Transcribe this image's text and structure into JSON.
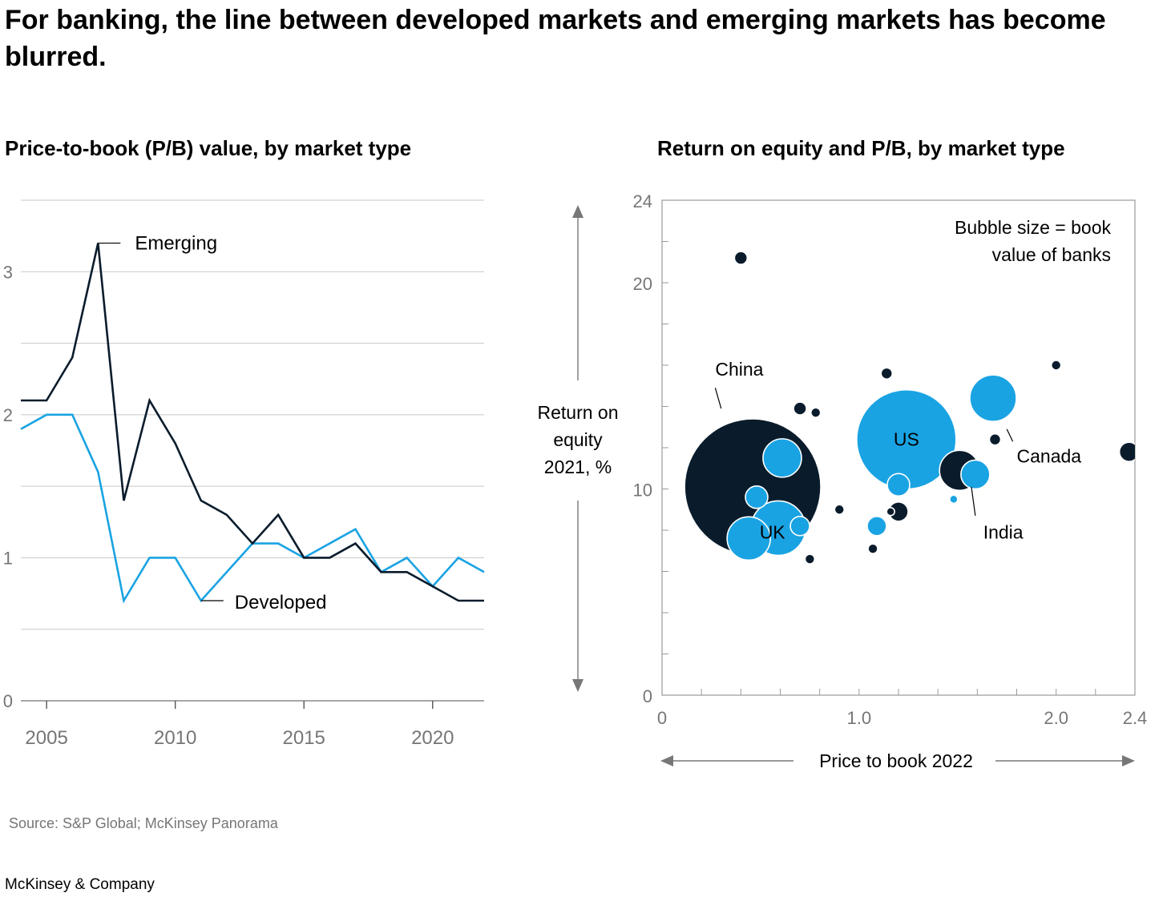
{
  "headline": "For banking, the line between developed markets and emerging markets has become blurred.",
  "source": "Source: S&P Global; McKinsey Panorama",
  "brand": "McKinsey & Company",
  "colors": {
    "developed": "#1aa3e3",
    "emerging": "#0a1c2c",
    "grid": "#c8c8c8",
    "axis_text": "#767676"
  },
  "chart_data": [
    {
      "type": "line",
      "title": "Price-to-book (P/B) value, by market type",
      "x": [
        2004,
        2005,
        2006,
        2007,
        2008,
        2009,
        2010,
        2011,
        2012,
        2013,
        2014,
        2015,
        2016,
        2017,
        2018,
        2019,
        2020,
        2021,
        2022
      ],
      "series": [
        {
          "name": "Emerging",
          "values": [
            2.1,
            2.1,
            2.4,
            3.2,
            1.4,
            2.1,
            1.8,
            1.4,
            1.3,
            1.1,
            1.3,
            1.0,
            1.0,
            1.1,
            0.9,
            0.9,
            0.8,
            0.7,
            0.7
          ]
        },
        {
          "name": "Developed",
          "values": [
            1.9,
            2.0,
            2.0,
            1.6,
            0.7,
            1.0,
            1.0,
            0.7,
            0.9,
            1.1,
            1.1,
            1.0,
            1.1,
            1.2,
            0.9,
            1.0,
            0.8,
            1.0,
            0.9
          ]
        }
      ],
      "xticks": [
        "2005",
        "2010",
        "2015",
        "2020"
      ],
      "yticks": [
        "0",
        "1",
        "2",
        "3"
      ],
      "ylim": [
        0,
        3.5
      ],
      "xlim": [
        2004,
        2022
      ],
      "grid": true
    },
    {
      "type": "scatter",
      "title": "Return on equity and P/B, by market type",
      "xlabel": "Price to book 2022",
      "ylabel_lines": [
        "Return on",
        "equity",
        "2021, %"
      ],
      "note_lines": [
        "Bubble size = book",
        "value of banks"
      ],
      "xlim": [
        0,
        2.4
      ],
      "ylim": [
        0,
        24
      ],
      "xticks": [
        "0",
        "1.0",
        "2.0",
        "2.4"
      ],
      "yticks": [
        "0",
        "10",
        "20",
        "24"
      ],
      "series": [
        {
          "name": "Emerging",
          "points": [
            {
              "x": 0.46,
              "y": 10.1,
              "size": 85
            },
            {
              "x": 1.51,
              "y": 10.9,
              "size": 25
            },
            {
              "x": 1.2,
              "y": 8.9,
              "size": 12
            },
            {
              "x": 2.37,
              "y": 11.8,
              "size": 12
            },
            {
              "x": 0.4,
              "y": 21.2,
              "size": 8
            },
            {
              "x": 0.7,
              "y": 13.9,
              "size": 8
            },
            {
              "x": 1.14,
              "y": 15.6,
              "size": 7
            },
            {
              "x": 1.69,
              "y": 12.4,
              "size": 7
            },
            {
              "x": 0.78,
              "y": 13.7,
              "size": 6
            },
            {
              "x": 0.9,
              "y": 9.0,
              "size": 6
            },
            {
              "x": 1.07,
              "y": 7.1,
              "size": 6
            },
            {
              "x": 0.75,
              "y": 6.6,
              "size": 6
            },
            {
              "x": 2.0,
              "y": 16.0,
              "size": 6
            },
            {
              "x": 1.16,
              "y": 8.9,
              "size": 5
            }
          ]
        },
        {
          "name": "Developed",
          "points": [
            {
              "x": 1.24,
              "y": 12.4,
              "size": 62
            },
            {
              "x": 0.59,
              "y": 8.1,
              "size": 34
            },
            {
              "x": 0.44,
              "y": 7.6,
              "size": 27
            },
            {
              "x": 1.68,
              "y": 14.4,
              "size": 29
            },
            {
              "x": 0.61,
              "y": 11.5,
              "size": 24
            },
            {
              "x": 1.59,
              "y": 10.7,
              "size": 18
            },
            {
              "x": 1.2,
              "y": 10.2,
              "size": 14
            },
            {
              "x": 0.48,
              "y": 9.6,
              "size": 14
            },
            {
              "x": 0.7,
              "y": 8.2,
              "size": 12
            },
            {
              "x": 1.09,
              "y": 8.2,
              "size": 12
            },
            {
              "x": 1.48,
              "y": 9.5,
              "size": 5
            }
          ]
        }
      ],
      "labels": [
        {
          "text": "China",
          "x": 0.27,
          "y": 15.8,
          "target_x": 0.3,
          "target_y": 13.9,
          "label_x": 0.27,
          "label_y": 14.9
        },
        {
          "text": "US",
          "x": 1.24,
          "y": 12.4
        },
        {
          "text": "UK",
          "x": 0.56,
          "y": 7.9
        },
        {
          "text": "Canada",
          "x": 1.8,
          "y": 11.6,
          "target_x": 1.75,
          "target_y": 12.9,
          "label_x": 1.78,
          "label_y": 12.3
        },
        {
          "text": "India",
          "x": 1.63,
          "y": 7.9,
          "target_x": 1.57,
          "target_y": 10.1,
          "label_x": 1.59,
          "label_y": 8.7
        }
      ]
    }
  ]
}
